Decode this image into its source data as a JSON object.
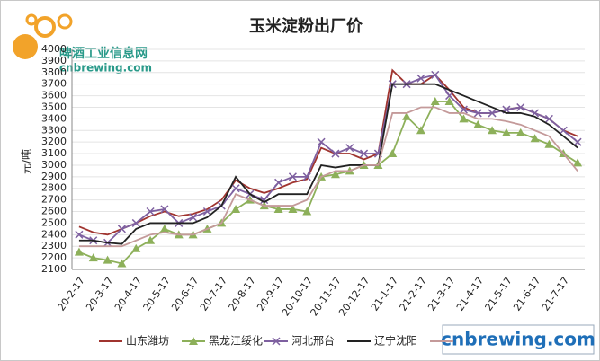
{
  "chart_data": {
    "type": "line",
    "title": "玉米淀粉出厂价",
    "y_label": "元/吨",
    "watermark_top": "啤酒工业信息网",
    "watermark_top_url": "cnbrewing.com",
    "watermark_bottom": "cnbrewing.com",
    "categories": [
      "20-2-17",
      null,
      "20-3-17",
      null,
      "20-4-17",
      null,
      "20-5-17",
      null,
      "20-6-17",
      null,
      "20-7-17",
      null,
      "20-8-17",
      null,
      "20-9-17",
      null,
      "20-10-17",
      null,
      "20-11-17",
      null,
      "20-12-17",
      null,
      "21-1-17",
      null,
      "21-2-17",
      null,
      "21-3-17",
      null,
      "21-4-17",
      null,
      "21-5-17",
      null,
      "21-6-17",
      null,
      "21-7-17",
      null
    ],
    "ylim": [
      2100,
      4000
    ],
    "yticks": [
      2100,
      2200,
      2300,
      2400,
      2500,
      2600,
      2700,
      2800,
      2900,
      3000,
      3100,
      3200,
      3300,
      3400,
      3500,
      3600,
      3700,
      3800,
      3900,
      4000
    ],
    "series": [
      {
        "name": "山东潍坊",
        "color": "#a0342f",
        "marker": "none",
        "values": [
          2470,
          2420,
          2400,
          2450,
          2500,
          2560,
          2600,
          2560,
          2580,
          2620,
          2700,
          2870,
          2800,
          2760,
          2800,
          2850,
          2880,
          3150,
          3100,
          3100,
          3050,
          3100,
          3820,
          3700,
          3700,
          3780,
          3650,
          3500,
          3450,
          3450,
          3480,
          3500,
          3450,
          3400,
          3300,
          3250
        ]
      },
      {
        "name": "黑龙江绥化",
        "color": "#8db05a",
        "marker": "triangle",
        "values": [
          2250,
          2200,
          2180,
          2150,
          2280,
          2350,
          2450,
          2400,
          2400,
          2450,
          2500,
          2620,
          2700,
          2650,
          2620,
          2620,
          2600,
          2900,
          2920,
          2950,
          3000,
          3000,
          3100,
          3420,
          3300,
          3550,
          3550,
          3400,
          3350,
          3300,
          3280,
          3280,
          3230,
          3180,
          3100,
          3020
        ]
      },
      {
        "name": "河北邢台",
        "color": "#7e60a0",
        "marker": "x",
        "values": [
          2400,
          2350,
          2330,
          2450,
          2500,
          2600,
          2620,
          2500,
          2550,
          2600,
          2650,
          2800,
          2750,
          2700,
          2850,
          2900,
          2900,
          3200,
          3100,
          3150,
          3100,
          3100,
          3700,
          3700,
          3750,
          3780,
          3600,
          3480,
          3450,
          3450,
          3480,
          3500,
          3450,
          3400,
          3300,
          3200
        ]
      },
      {
        "name": "辽宁沈阳",
        "color": "#222222",
        "marker": "none",
        "values": [
          2350,
          2350,
          2330,
          2320,
          2450,
          2500,
          2500,
          2500,
          2500,
          2550,
          2650,
          2900,
          2750,
          2680,
          2750,
          2750,
          2750,
          3000,
          2980,
          3000,
          3000,
          3000,
          3700,
          3700,
          3700,
          3700,
          3650,
          3600,
          3550,
          3500,
          3450,
          3450,
          3420,
          3350,
          3250,
          3150
        ]
      },
      {
        "color": "#c49a9a",
        "marker": "none",
        "values": [
          2300,
          2300,
          2300,
          2300,
          2350,
          2400,
          2420,
          2400,
          2400,
          2450,
          2500,
          2750,
          2700,
          2650,
          2650,
          2650,
          2700,
          2900,
          2950,
          2950,
          3000,
          3000,
          3450,
          3450,
          3500,
          3500,
          3450,
          3450,
          3400,
          3400,
          3380,
          3350,
          3300,
          3250,
          3100,
          2950
        ]
      }
    ]
  }
}
